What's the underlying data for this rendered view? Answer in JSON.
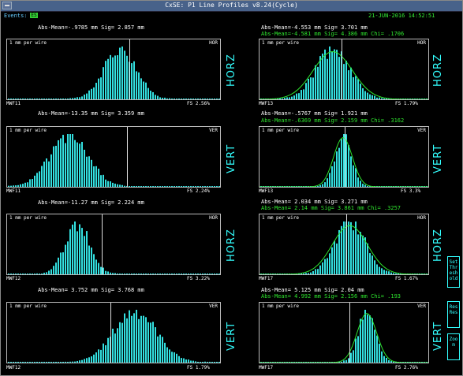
{
  "window": {
    "title": "CxSE: P1 Line Profiles v8.24(Cycle)"
  },
  "events": {
    "label": "Events:",
    "indicator": "ES",
    "indicator_color": "#33cc33"
  },
  "datetime": "21-JUN-2016 14:52:51",
  "colors": {
    "bars": "#33e0e0",
    "fit": "#2ee62e",
    "border": "#bbbbbb",
    "text_stats": "#ffffff",
    "text_fit": "#2ee62e"
  },
  "panels": [
    {
      "id": "p1",
      "stats": "Abs-Mean=-.9785 mm Sig= 2.857 mm",
      "fit_stats": "",
      "scale": "1    mm per wire",
      "orient_tag": "HOR",
      "monitor": "MWF11",
      "fs": "FS  2.56%",
      "axis_label": "HORZ",
      "dist": {
        "mu": 0.53,
        "sigma": 0.075,
        "peak": 0.97,
        "fit": false,
        "marker": 0.57
      }
    },
    {
      "id": "p2",
      "stats": "Abs-Mean=-4.553 mm Sig= 3.701 mm",
      "fit_stats": "Abs-Mean=-4.581 mm Sig= 4.386 mm Chi= .1706",
      "scale": "1    mm per wire",
      "orient_tag": "HOR",
      "monitor": "MWF13",
      "fs": "FS  1.79%",
      "axis_label": "HORZ",
      "dist": {
        "mu": 0.43,
        "sigma": 0.1,
        "peak": 0.95,
        "fit": true,
        "marker": 0.48
      }
    },
    {
      "id": "p3",
      "stats": "Abs-Mean=-13.35 mm Sig= 3.359 mm",
      "fit_stats": "",
      "scale": "1    mm per wire",
      "orient_tag": "VER",
      "monitor": "MWF11",
      "fs": "FS  2.24%",
      "axis_label": "VERT",
      "dist": {
        "mu": 0.29,
        "sigma": 0.09,
        "peak": 0.97,
        "fit": false,
        "marker": 0.56
      }
    },
    {
      "id": "p4",
      "stats": "Abs-Mean=-.5767 mm Sig= 1.921 mm",
      "fit_stats": "Abs-Mean=-.6369 mm Sig= 2.159 mm Chi= .3162",
      "scale": "1    mm per wire",
      "orient_tag": "VER",
      "monitor": "MWF13",
      "fs": "FS   3.3%",
      "axis_label": "VERT",
      "dist": {
        "mu": 0.49,
        "sigma": 0.048,
        "peak": 0.98,
        "fit": true,
        "marker": 0.5
      }
    },
    {
      "id": "p5",
      "stats": "Abs-Mean=-11.27 mm Sig= 2.224 mm",
      "fit_stats": "",
      "scale": "1    mm per wire",
      "orient_tag": "HOR",
      "monitor": "MWF12",
      "fs": "FS  3.22%",
      "axis_label": "HORZ",
      "dist": {
        "mu": 0.33,
        "sigma": 0.058,
        "peak": 0.93,
        "fit": false,
        "marker": 0.44
      }
    },
    {
      "id": "p6",
      "stats": "Abs-Mean= 2.034 mm Sig= 3.271 mm",
      "fit_stats": "Abs-Mean= 2.14  mm Sig= 3.861 mm Chi= .3257",
      "scale": "1    mm per wire",
      "orient_tag": "HOR",
      "monitor": "MWF17",
      "fs": "FS  1.67%",
      "axis_label": "HORZ",
      "dist": {
        "mu": 0.53,
        "sigma": 0.09,
        "peak": 0.97,
        "fit": true,
        "marker": 0.51
      }
    },
    {
      "id": "p7",
      "stats": "Abs-Mean= 3.752 mm Sig= 3.768 mm",
      "fit_stats": "",
      "scale": "1    mm per wire",
      "orient_tag": "VER",
      "monitor": "MWF12",
      "fs": "FS  1.79%",
      "axis_label": "VERT",
      "dist": {
        "mu": 0.6,
        "sigma": 0.1,
        "peak": 0.97,
        "fit": false,
        "marker": 0.48
      }
    },
    {
      "id": "p8",
      "stats": "Abs-Mean= 5.125 mm Sig= 2.04  mm",
      "fit_stats": "Abs-Mean= 4.992 mm Sig= 2.156 mm Chi= .193",
      "scale": "1    mm per wire",
      "orient_tag": "VER",
      "monitor": "MWF17",
      "fs": "FS  2.76%",
      "axis_label": "VERT",
      "dist": {
        "mu": 0.63,
        "sigma": 0.05,
        "peak": 0.98,
        "fit": true,
        "marker": 0.53
      }
    }
  ],
  "side_buttons": [
    {
      "id": "threshold",
      "label": "Set Thr esh old"
    },
    {
      "id": "reset",
      "label": "Res Res"
    },
    {
      "id": "zoom",
      "label": "Zoo m"
    }
  ]
}
